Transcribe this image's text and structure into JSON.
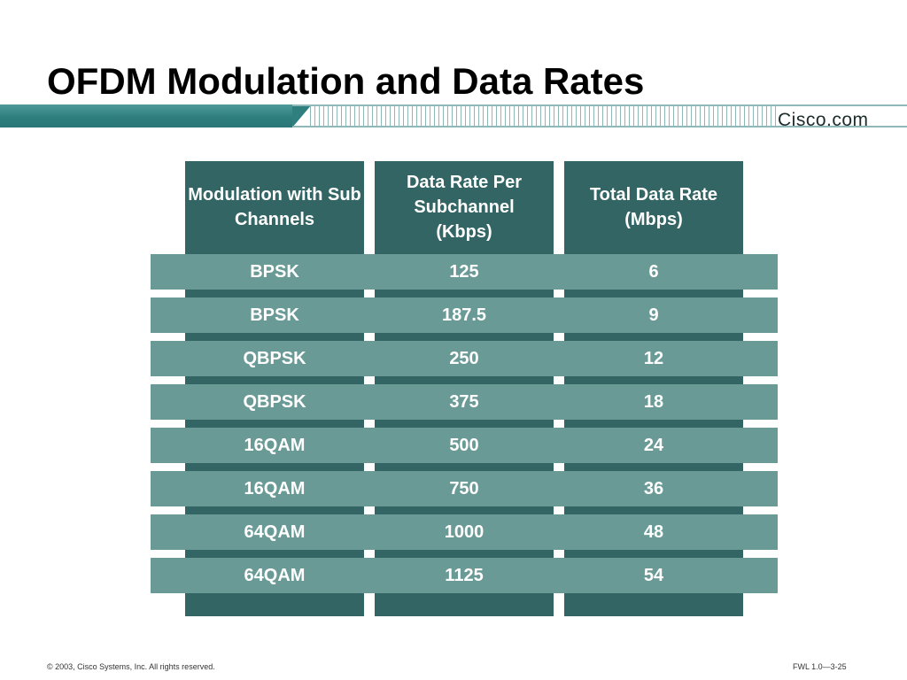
{
  "slide": {
    "title": "OFDM Modulation and Data Rates",
    "brand": "Cisco.com",
    "footer_left": "© 2003, Cisco Systems, Inc. All rights reserved.",
    "footer_right": "FWL 1.0—3-25"
  },
  "table": {
    "headers": [
      "Modulation with Sub Channels",
      "Data Rate Per Subchannel (Kbps)",
      "Total Data Rate (Mbps)"
    ],
    "rows": [
      [
        "BPSK",
        "125",
        "6"
      ],
      [
        "BPSK",
        "187.5",
        "9"
      ],
      [
        "QBPSK",
        "250",
        "12"
      ],
      [
        "QBPSK",
        "375",
        "18"
      ],
      [
        "16QAM",
        "500",
        "24"
      ],
      [
        "16QAM",
        "750",
        "36"
      ],
      [
        "64QAM",
        "1000",
        "48"
      ],
      [
        "64QAM",
        "1125",
        "54"
      ]
    ]
  },
  "colors": {
    "column": "#336565",
    "row": "#6a9a96",
    "band": "#2f7f7f"
  }
}
